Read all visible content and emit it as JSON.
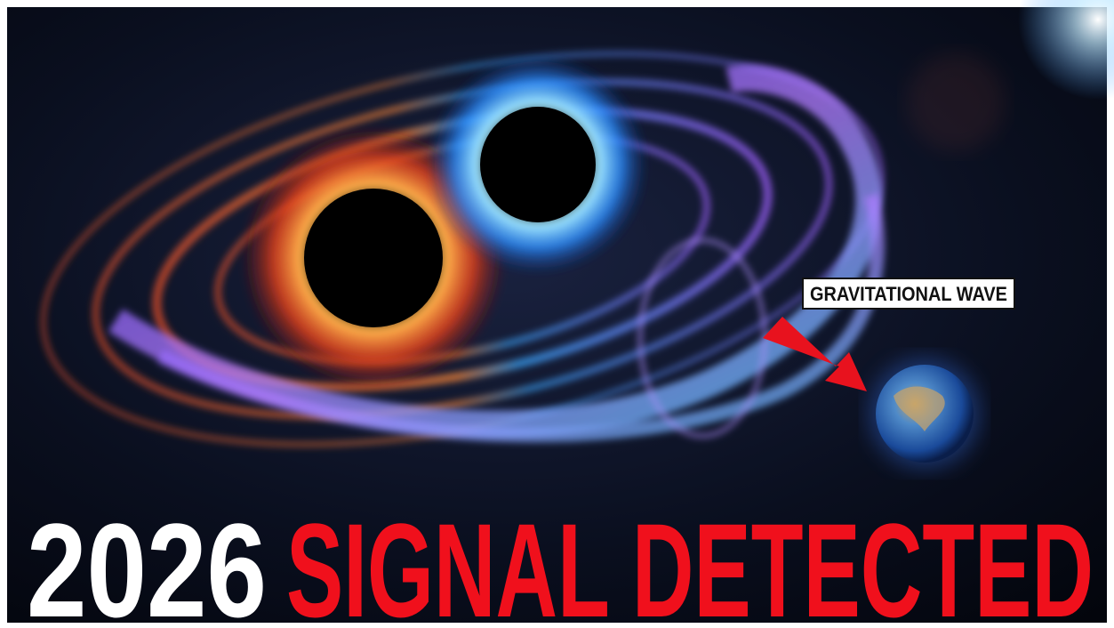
{
  "label": "GRAVITATIONAL WAVE",
  "headline": {
    "year": "2026",
    "text": "SIGNAL DETECTED"
  }
}
